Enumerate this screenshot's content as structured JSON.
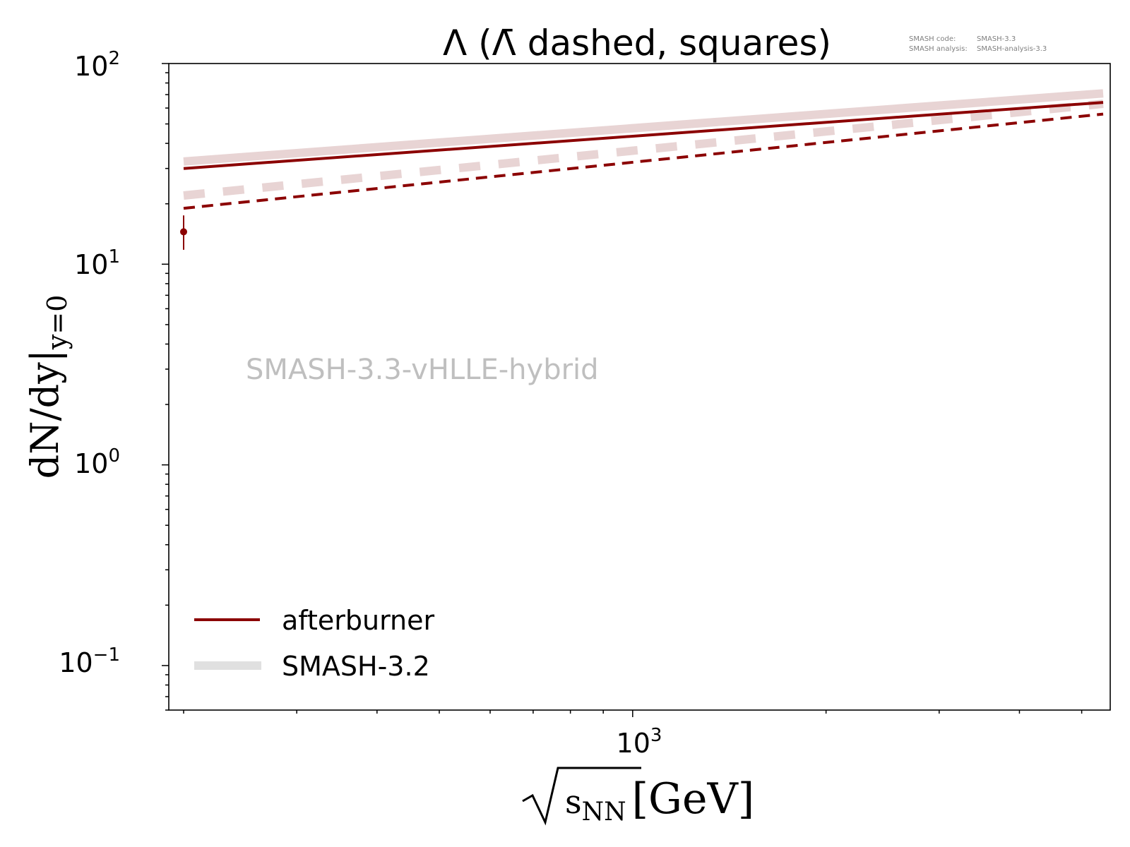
{
  "chart_data": {
    "type": "line",
    "title": "Λ (Λ̄ dashed, squares)",
    "xlabel": {
      "sqrt_symbol": "√",
      "main": "s",
      "sub": "NN",
      "unit": "[GeV]"
    },
    "ylabel": {
      "main": "dN/dy|",
      "sub": "y=0"
    },
    "x_scale": "log",
    "y_scale": "log",
    "xlim": [
      200,
      5400
    ],
    "ylim": [
      0.06,
      100
    ],
    "x_ticks": [
      {
        "value": 1000,
        "base": "10",
        "exp": "3"
      }
    ],
    "y_ticks": [
      {
        "value": 0.1,
        "base": "10",
        "exp": "−1"
      },
      {
        "value": 1,
        "base": "10",
        "exp": "0"
      },
      {
        "value": 10,
        "base": "10",
        "exp": "1"
      },
      {
        "value": 100,
        "base": "10",
        "exp": "2"
      }
    ],
    "grid": false,
    "legend_position": "lower-left",
    "colors": {
      "afterburner": "#8b0000",
      "smash32": "#e8d4d4",
      "legend_smash32": "#e0e0e0",
      "watermark": "#bfbfbf",
      "meta": "#808080"
    },
    "series": [
      {
        "name": "afterburner",
        "style": "solid",
        "x": [
          200,
          5400
        ],
        "y": [
          30,
          64
        ]
      },
      {
        "name": "afterburner",
        "style": "dashed",
        "x": [
          200,
          5400
        ],
        "y": [
          19,
          56
        ]
      },
      {
        "name": "SMASH-3.2",
        "style": "solid",
        "x": [
          200,
          5400
        ],
        "y": [
          32.5,
          71
        ]
      },
      {
        "name": "SMASH-3.2",
        "style": "dashed",
        "x": [
          200,
          5400
        ],
        "y": [
          22,
          63
        ]
      }
    ],
    "data_points": [
      {
        "x": 200,
        "y": 14.5,
        "y_low": 11.8,
        "y_high": 17.5
      }
    ],
    "legend": [
      {
        "label": "afterburner",
        "color": "#8b0000"
      },
      {
        "label": "SMASH-3.2",
        "color": "#e0e0e0"
      }
    ],
    "watermark": "SMASH-3.3-vHLLE-hybrid",
    "meta": [
      {
        "key": "SMASH code:",
        "value": "SMASH-3.3"
      },
      {
        "key": "SMASH analysis:",
        "value": "SMASH-analysis-3.3"
      }
    ]
  }
}
